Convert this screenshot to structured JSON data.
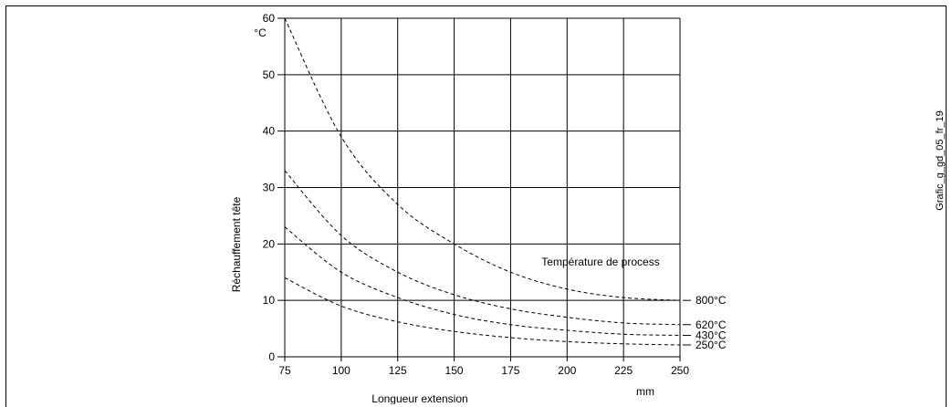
{
  "figure_id": "Grafic_g_gd_05_fr_19",
  "chart_data": {
    "type": "line",
    "title": "",
    "xlabel": "Longueur extension",
    "ylabel": "Réchauffement tête",
    "x_unit": "mm",
    "y_unit": "°C",
    "annotation": "Température de process",
    "xlim": [
      75,
      250
    ],
    "ylim": [
      0,
      60
    ],
    "xticks": [
      75,
      100,
      125,
      150,
      175,
      200,
      225,
      250
    ],
    "yticks": [
      0,
      10,
      20,
      30,
      40,
      50,
      60
    ],
    "grid": true,
    "series": [
      {
        "name": "800°C",
        "x": [
          75,
          100,
          125,
          150,
          175,
          200,
          225,
          250
        ],
        "y": [
          60,
          39,
          27,
          20,
          15,
          12,
          10.5,
          10
        ]
      },
      {
        "name": "620°C",
        "x": [
          75,
          100,
          125,
          150,
          175,
          200,
          225,
          250
        ],
        "y": [
          33,
          21.5,
          15,
          11,
          8.5,
          7,
          6,
          5.7
        ]
      },
      {
        "name": "430°C",
        "x": [
          75,
          100,
          125,
          150,
          175,
          200,
          225,
          250
        ],
        "y": [
          23,
          15,
          10.5,
          7.5,
          5.7,
          4.7,
          4,
          3.8
        ]
      },
      {
        "name": "250°C",
        "x": [
          75,
          100,
          125,
          150,
          175,
          200,
          225,
          250
        ],
        "y": [
          14,
          9,
          6.2,
          4.5,
          3.4,
          2.7,
          2.3,
          2.1
        ]
      }
    ]
  }
}
